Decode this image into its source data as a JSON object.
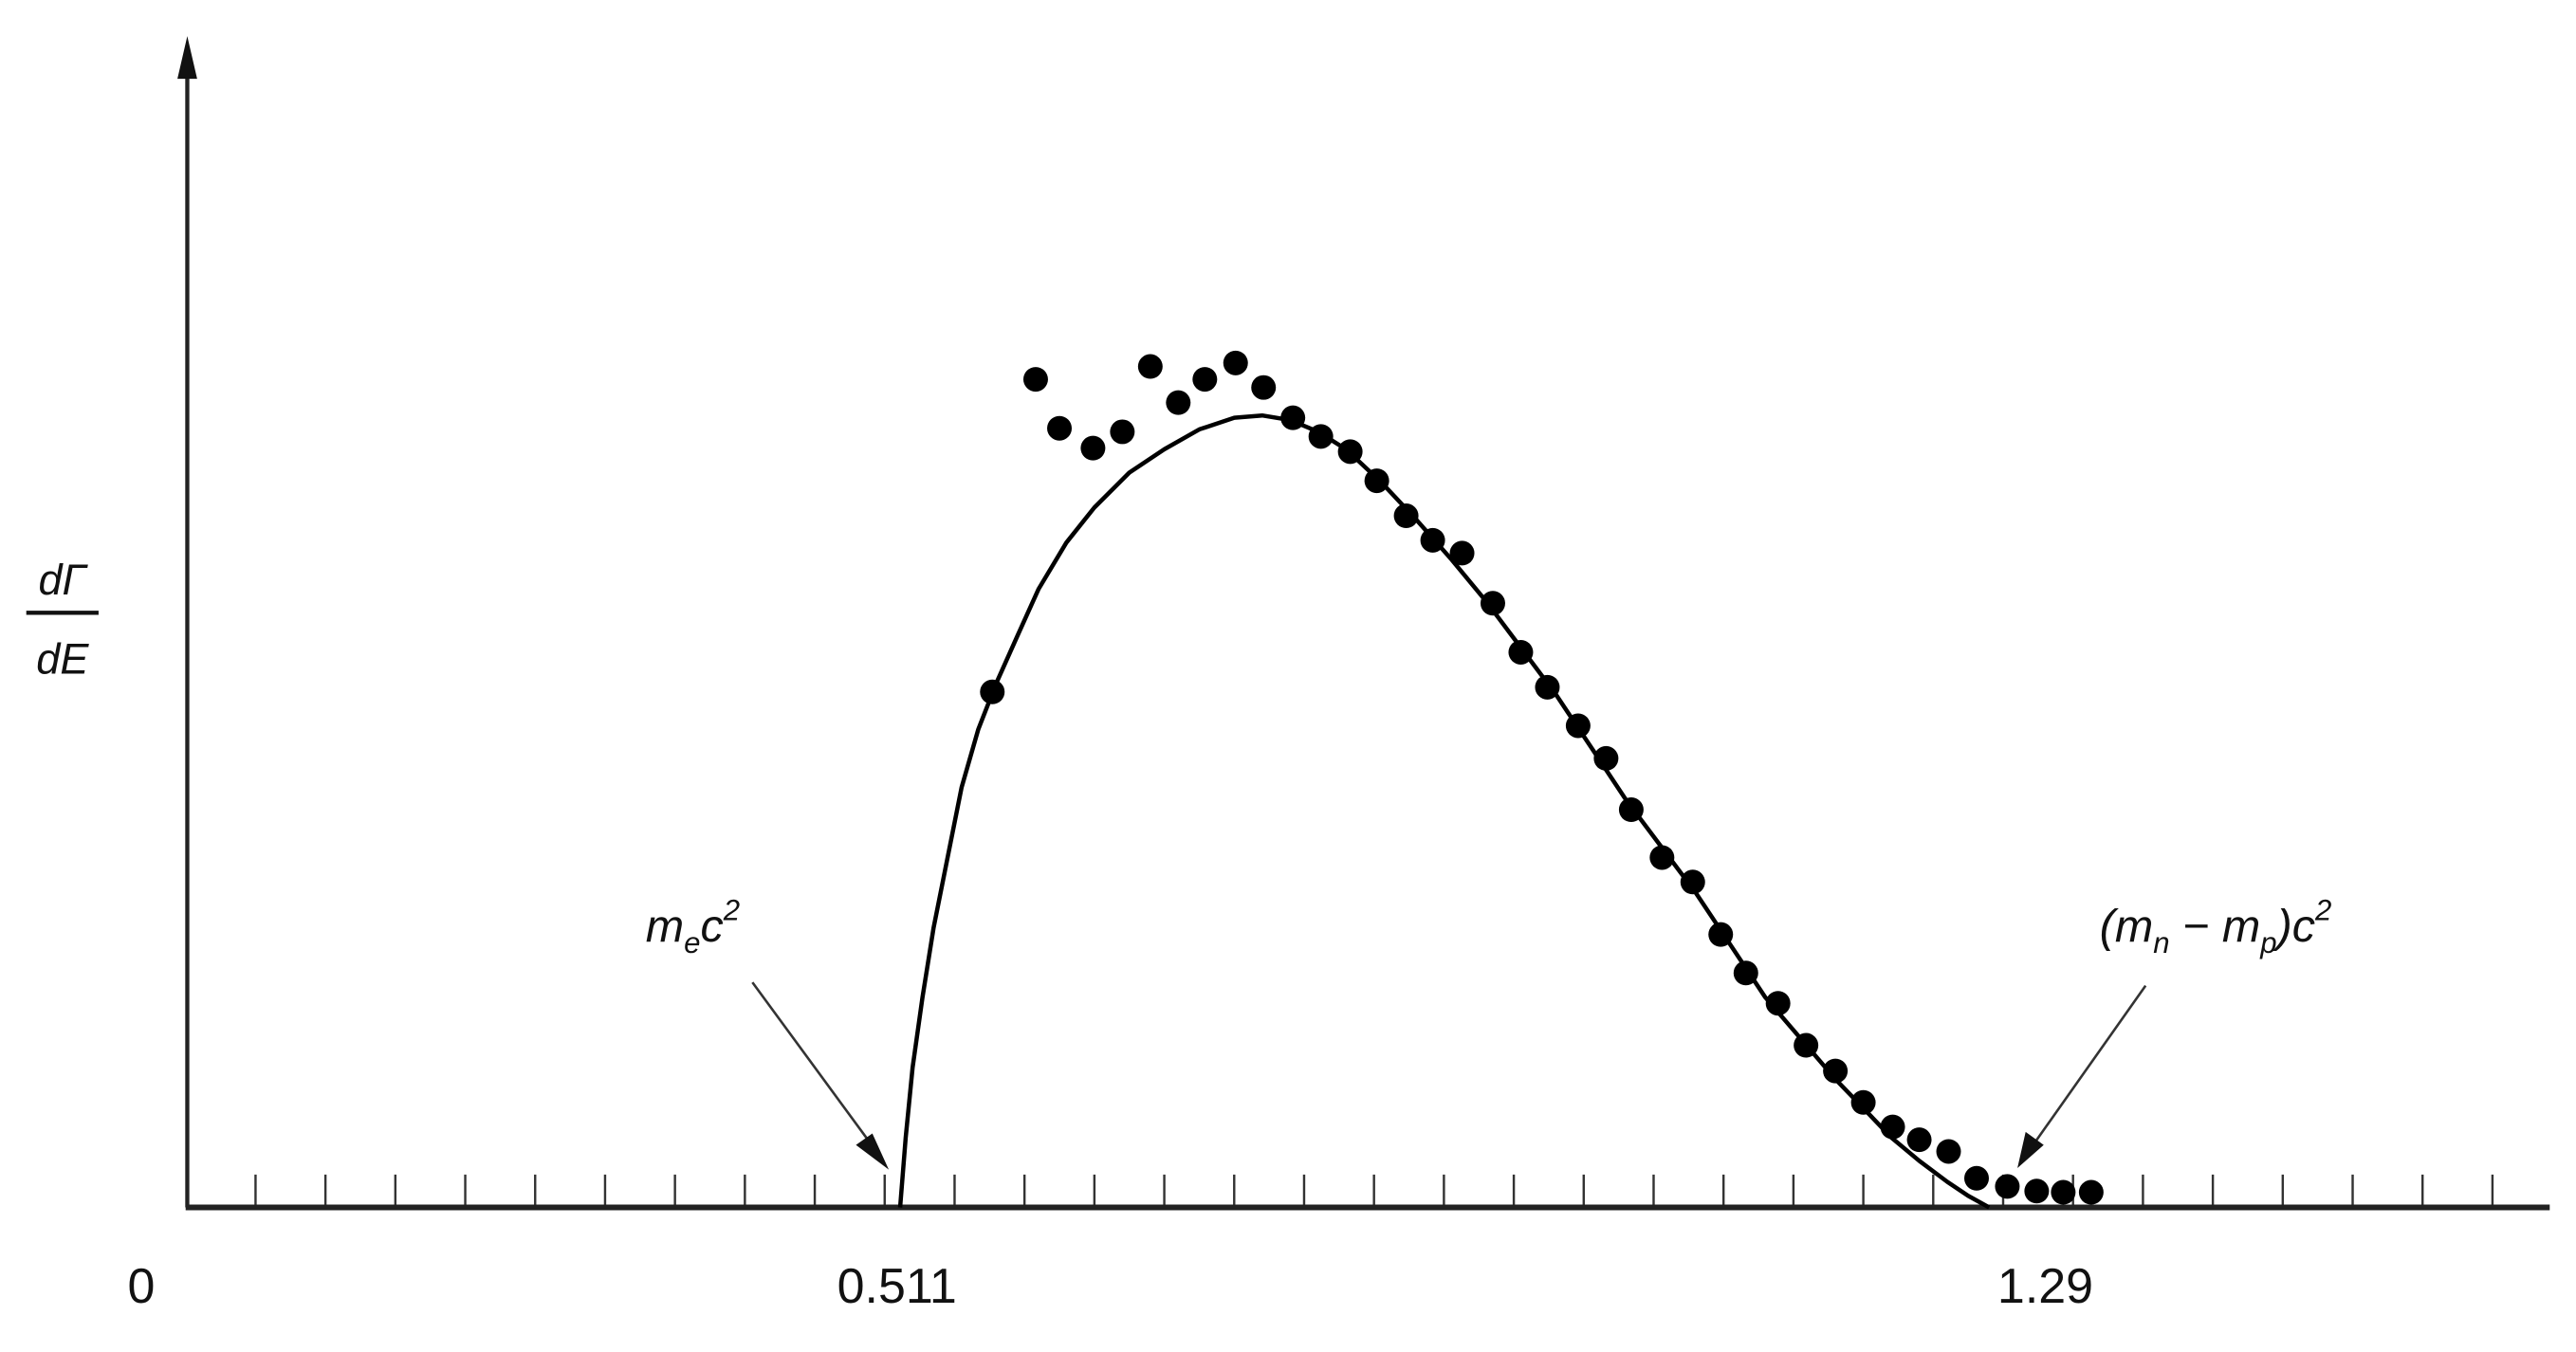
{
  "chart_data": {
    "type": "scatter",
    "title": "",
    "xlabel": "",
    "ylabel": {
      "numerator": "dΓ",
      "denominator": "dE"
    },
    "xlim": [
      0,
      1.69
    ],
    "ylim": [
      0,
      1
    ],
    "grid": false,
    "x_tick_step": 0.05,
    "x_tick_labels": [
      {
        "value": 0,
        "label": "0"
      },
      {
        "value": 0.511,
        "label": "0.511"
      },
      {
        "value": 1.29,
        "label": "1.29"
      }
    ],
    "annotations": [
      {
        "id": "electron-mass",
        "target_x": 0.511,
        "parts": {
          "m": "m",
          "sub": "e",
          "c": "c",
          "sup": "2"
        }
      },
      {
        "id": "mass-difference",
        "target_x": 1.29,
        "parts": {
          "open": "(m",
          "sub1": "n",
          "minus": " − m",
          "sub2": "p",
          "close": ")c",
          "sup": "2"
        }
      }
    ],
    "series": [
      {
        "kind": "points",
        "color": "#000000",
        "x": [
          0.577,
          0.608,
          0.625,
          0.649,
          0.67,
          0.69,
          0.71,
          0.729,
          0.751,
          0.771,
          0.792,
          0.812,
          0.833,
          0.852,
          0.873,
          0.892,
          0.913,
          0.935,
          0.955,
          0.974,
          0.996,
          1.016,
          1.034,
          1.056,
          1.078,
          1.098,
          1.116,
          1.139,
          1.159,
          1.18,
          1.2,
          1.221,
          1.24,
          1.261,
          1.281,
          1.303,
          1.324,
          1.343,
          1.363
        ],
        "y": [
          0.442,
          0.71,
          0.668,
          0.651,
          0.665,
          0.721,
          0.69,
          0.71,
          0.724,
          0.703,
          0.677,
          0.661,
          0.648,
          0.623,
          0.593,
          0.572,
          0.561,
          0.518,
          0.476,
          0.446,
          0.413,
          0.385,
          0.341,
          0.3,
          0.279,
          0.234,
          0.201,
          0.175,
          0.139,
          0.117,
          0.09,
          0.069,
          0.058,
          0.048,
          0.025,
          0.018,
          0.014,
          0.013,
          0.013
        ]
      },
      {
        "kind": "curve",
        "color": "#000000",
        "x": [
          0.511,
          0.515,
          0.52,
          0.527,
          0.535,
          0.545,
          0.555,
          0.567,
          0.58,
          0.595,
          0.61,
          0.63,
          0.65,
          0.675,
          0.7,
          0.725,
          0.75,
          0.77,
          0.79,
          0.81,
          0.83,
          0.855,
          0.88,
          0.905,
          0.93,
          0.955,
          0.98,
          1.005,
          1.03,
          1.055,
          1.08,
          1.105,
          1.13,
          1.155,
          1.18,
          1.2,
          1.22,
          1.24,
          1.26,
          1.275,
          1.29
        ],
        "y": [
          0,
          0.06,
          0.12,
          0.18,
          0.24,
          0.3,
          0.36,
          0.41,
          0.45,
          0.49,
          0.53,
          0.57,
          0.6,
          0.63,
          0.65,
          0.667,
          0.677,
          0.679,
          0.675,
          0.665,
          0.65,
          0.622,
          0.59,
          0.556,
          0.52,
          0.48,
          0.44,
          0.395,
          0.35,
          0.31,
          0.27,
          0.225,
          0.18,
          0.145,
          0.11,
          0.085,
          0.06,
          0.04,
          0.022,
          0.01,
          0
        ]
      }
    ]
  }
}
